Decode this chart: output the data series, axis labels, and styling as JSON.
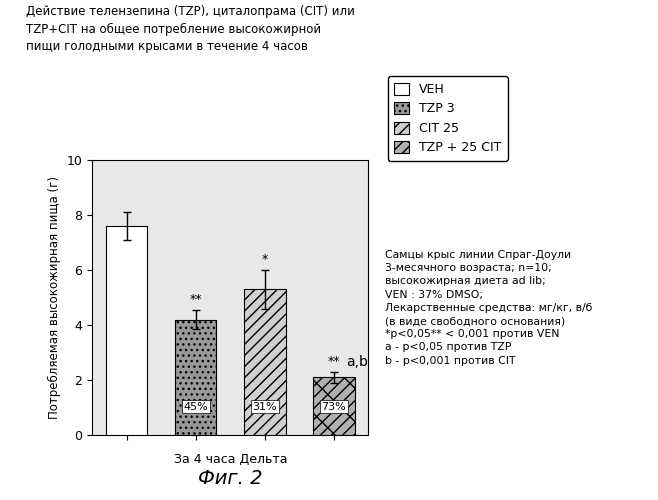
{
  "title_line1": "Действие телензепина (TZP), циталопрама (CIT) или",
  "title_line2": "TZP+CIT на общее потребление высокожирной",
  "title_line3": "пищи голодными крысами в течение 4 часов",
  "ylabel": "Потребляемая высокожирная пища (г)",
  "xlabel": "За 4 часа Дельта",
  "fig_label": "Фиг. 2",
  "categories": [
    "VEH",
    "TZP 3",
    "CIT 25",
    "TZP + 25 CIT"
  ],
  "values": [
    7.6,
    4.2,
    5.3,
    2.1
  ],
  "errors": [
    0.5,
    0.35,
    0.7,
    0.2
  ],
  "percentages": [
    "",
    "45%",
    "31%",
    "73%"
  ],
  "sig_above": [
    "",
    "**",
    "*",
    "**"
  ],
  "sig_below": [
    "",
    "",
    "",
    "a,b"
  ],
  "ylim": [
    0,
    10
  ],
  "yticks": [
    0,
    2,
    4,
    6,
    8,
    10
  ],
  "bar_colors": [
    "#ffffff",
    "#999999",
    "#d0d0d0",
    "#b0b0b0"
  ],
  "bar_edgecolor": "#000000",
  "background_color": "#e8e8e8",
  "legend_labels": [
    "VEH",
    "TZP 3",
    "CIT 25",
    "TZP + 25 CIT"
  ],
  "side_note_line1": "Самцы крыс линии Спраг-Доули",
  "side_note_line2": "3-месячного возраста; n=10;",
  "side_note_line3": "высокожирная диета ad lib;",
  "side_note_line4": "VEN : 37% DMSO;",
  "side_note_line5": "Лекарственные средства: мг/кг, в/б",
  "side_note_line6": "(в виде свободного основания)",
  "side_note_line7": "*р<0,05** < 0,001 против VEN",
  "side_note_line8": "a - р<0,05 против TZP",
  "side_note_line9": "b - р<0,001 против CIT"
}
